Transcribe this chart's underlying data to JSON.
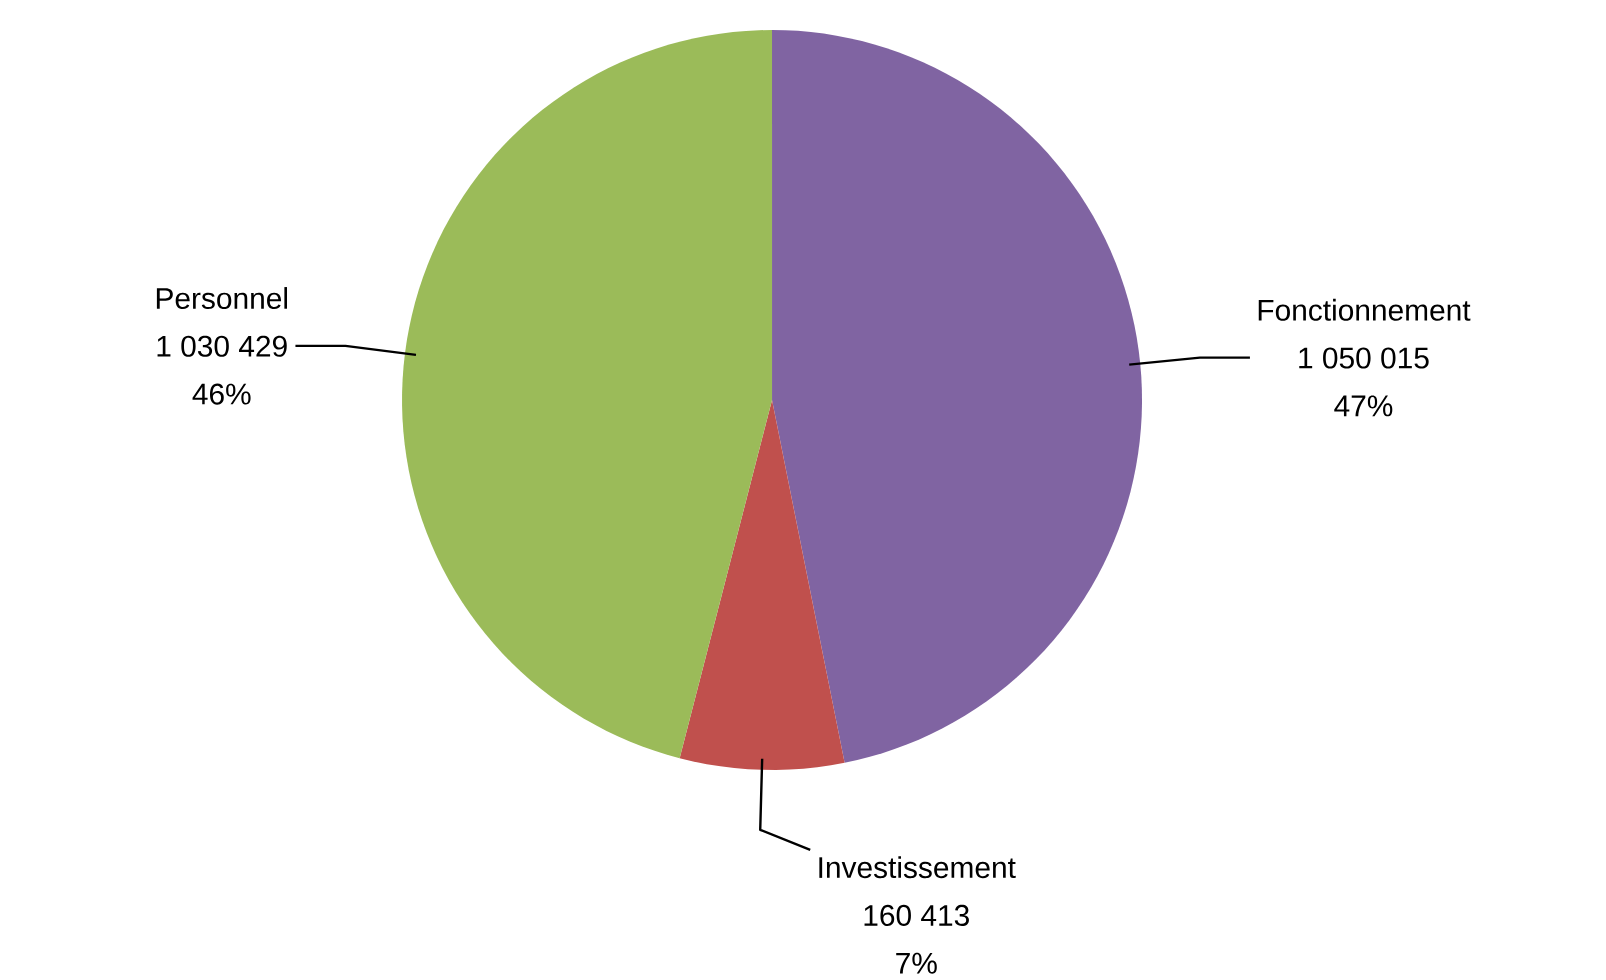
{
  "chart_data": {
    "type": "pie",
    "categories": [
      "Fonctionnement",
      "Investissement",
      "Personnel"
    ],
    "values": [
      1050015,
      160413,
      1030429
    ],
    "colors": [
      "#8064a2",
      "#c0504d",
      "#9bbb59"
    ],
    "value_labels": [
      "1 050 015",
      "160 413",
      "1 030 429"
    ],
    "annotations": [
      "47%",
      "7%",
      "46%"
    ]
  }
}
